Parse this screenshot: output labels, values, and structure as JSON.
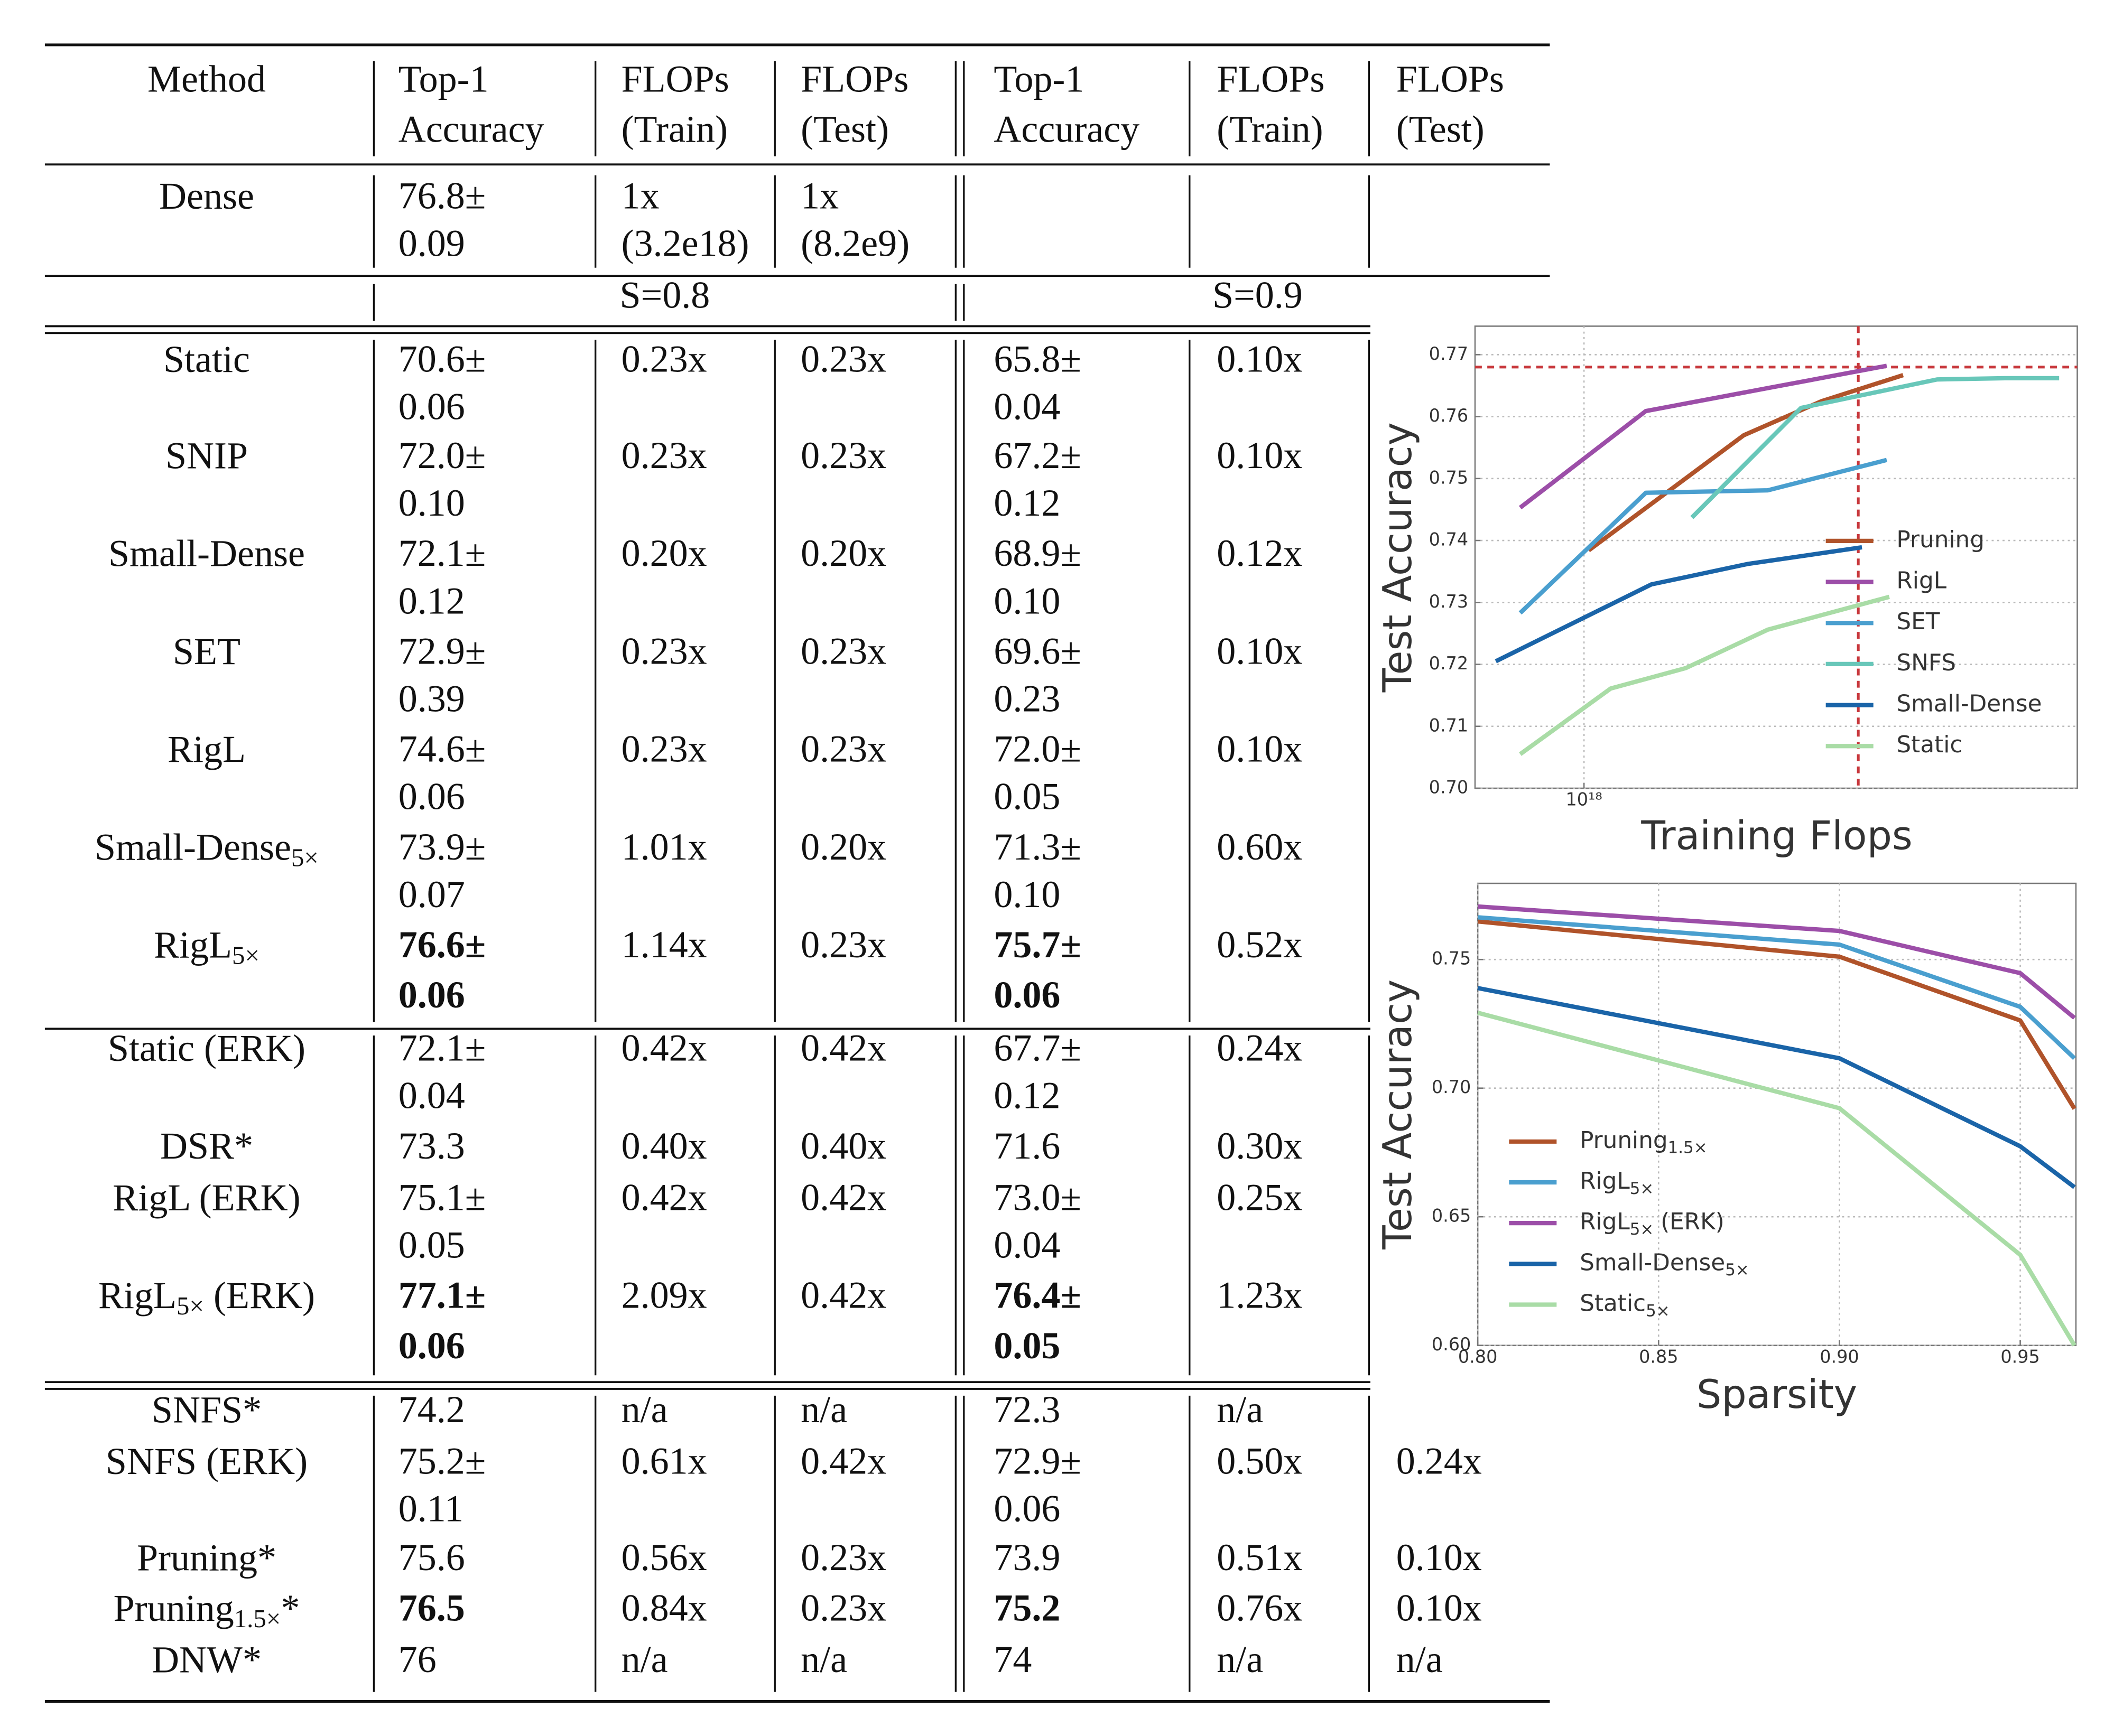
{
  "table": {
    "header": [
      [
        "Method"
      ],
      [
        "Top-1",
        "Accuracy"
      ],
      [
        "FLOPs",
        "(Train)"
      ],
      [
        "FLOPs",
        "(Test)"
      ],
      [
        "Top-1",
        "Accuracy"
      ],
      [
        "FLOPs",
        "(Train)"
      ],
      [
        "FLOPs",
        "(Test)"
      ]
    ],
    "dense": {
      "method": [
        "Dense"
      ],
      "cells": [
        [
          "76.8±",
          "0.09"
        ],
        [
          "1x",
          "(3.2e18)"
        ],
        [
          "1x",
          "(8.2e9)"
        ]
      ]
    },
    "sparsity": [
      "S=0.8",
      "S=0.9"
    ],
    "sections": [
      {
        "rows": [
          {
            "method": [
              "Static"
            ],
            "cells": [
              [
                "70.6±",
                "0.06"
              ],
              [
                "0.23x"
              ],
              [
                "0.23x"
              ],
              [
                "65.8±",
                "0.04"
              ],
              [
                "0.10x"
              ],
              null
            ]
          },
          {
            "method": [
              "SNIP"
            ],
            "cells": [
              [
                "72.0±",
                "0.10"
              ],
              [
                "0.23x"
              ],
              [
                "0.23x"
              ],
              [
                "67.2±",
                "0.12"
              ],
              [
                "0.10x"
              ],
              null
            ]
          },
          {
            "method": [
              "Small-Dense"
            ],
            "cells": [
              [
                "72.1±",
                "0.12"
              ],
              [
                "0.20x"
              ],
              [
                "0.20x"
              ],
              [
                "68.9±",
                "0.10"
              ],
              [
                "0.12x"
              ],
              null
            ]
          },
          {
            "method": [
              "SET"
            ],
            "cells": [
              [
                "72.9±",
                "0.39"
              ],
              [
                "0.23x"
              ],
              [
                "0.23x"
              ],
              [
                "69.6±",
                "0.23"
              ],
              [
                "0.10x"
              ],
              null
            ]
          },
          {
            "method": [
              "RigL"
            ],
            "cells": [
              [
                "74.6±",
                "0.06"
              ],
              [
                "0.23x"
              ],
              [
                "0.23x"
              ],
              [
                "72.0±",
                "0.05"
              ],
              [
                "0.10x"
              ],
              null
            ]
          },
          {
            "method": [
              "Small-Dense",
              "5×"
            ],
            "cells": [
              [
                "73.9±",
                "0.07"
              ],
              [
                "1.01x"
              ],
              [
                "0.20x"
              ],
              [
                "71.3±",
                "0.10"
              ],
              [
                "0.60x"
              ],
              null
            ]
          },
          {
            "method": [
              "RigL",
              "5×"
            ],
            "bold_accuracy": true,
            "cells": [
              [
                "76.6±",
                "0.06"
              ],
              [
                "1.14x"
              ],
              [
                "0.23x"
              ],
              [
                "75.7±",
                "0.06"
              ],
              [
                "0.52x"
              ],
              null
            ]
          }
        ]
      },
      {
        "rows": [
          {
            "method": [
              "Static (ERK)"
            ],
            "cells": [
              [
                "72.1±",
                "0.04"
              ],
              [
                "0.42x"
              ],
              [
                "0.42x"
              ],
              [
                "67.7±",
                "0.12"
              ],
              [
                "0.24x"
              ],
              null
            ]
          },
          {
            "method": [
              "DSR*"
            ],
            "cells": [
              [
                "73.3"
              ],
              [
                "0.40x"
              ],
              [
                "0.40x"
              ],
              [
                "71.6"
              ],
              [
                "0.30x"
              ],
              null
            ]
          },
          {
            "method": [
              "RigL (ERK)"
            ],
            "cells": [
              [
                "75.1±",
                "0.05"
              ],
              [
                "0.42x"
              ],
              [
                "0.42x"
              ],
              [
                "73.0±",
                "0.04"
              ],
              [
                "0.25x"
              ],
              null
            ]
          },
          {
            "method": [
              "RigL",
              "5×",
              "(ERK)"
            ],
            "bold_accuracy": true,
            "cells": [
              [
                "77.1±",
                "0.06"
              ],
              [
                "2.09x"
              ],
              [
                "0.42x"
              ],
              [
                "76.4±",
                "0.05"
              ],
              [
                "1.23x"
              ],
              null
            ]
          }
        ]
      },
      {
        "rows": [
          {
            "method": [
              "SNFS*"
            ],
            "cells": [
              [
                "74.2"
              ],
              [
                "n/a"
              ],
              [
                "n/a"
              ],
              [
                "72.3"
              ],
              [
                "n/a"
              ],
              null
            ]
          },
          {
            "method": [
              "SNFS (ERK)"
            ],
            "cells": [
              [
                "75.2±",
                "0.11"
              ],
              [
                "0.61x"
              ],
              [
                "0.42x"
              ],
              [
                "72.9±",
                "0.06"
              ],
              [
                "0.50x"
              ],
              [
                "0.24x"
              ]
            ]
          },
          {
            "method": [
              "Pruning*"
            ],
            "cells": [
              [
                "75.6"
              ],
              [
                "0.56x"
              ],
              [
                "0.23x"
              ],
              [
                "73.9"
              ],
              [
                "0.51x"
              ],
              [
                "0.10x"
              ]
            ]
          },
          {
            "method": [
              "Pruning",
              "1.5×",
              "*"
            ],
            "bold_accuracy": true,
            "cells": [
              [
                "76.5"
              ],
              [
                "0.84x"
              ],
              [
                "0.23x"
              ],
              [
                "75.2"
              ],
              [
                "0.76x"
              ],
              [
                "0.10x"
              ]
            ]
          },
          {
            "method": [
              "DNW*"
            ],
            "cells": [
              [
                "76"
              ],
              [
                "n/a"
              ],
              [
                "n/a"
              ],
              [
                "74"
              ],
              [
                "n/a"
              ],
              [
                "n/a"
              ]
            ]
          }
        ]
      }
    ]
  },
  "chart_data": [
    {
      "type": "line",
      "x_label": "Training Flops",
      "y_label": "Test Accuracy",
      "xscale": "log",
      "grid": true,
      "xlim": [
        6.3e+17,
        8.1e+18
      ],
      "xticks": [
        {
          "value": 1e+18,
          "label": "10¹⁸"
        }
      ],
      "ylim": [
        0.7,
        0.7746
      ],
      "yticks": [
        {
          "value": 0.7,
          "label": "0.70"
        },
        0.71,
        0.72,
        0.73,
        0.74,
        0.75,
        0.76,
        0.77
      ],
      "reference_lines": {
        "x": 3.2e+18,
        "y": 0.768,
        "color": "#c8383c"
      },
      "series": [
        {
          "name": "Pruning",
          "color": "#b0532a",
          "x": [
            1.02e+18,
            1.97e+18,
            2.74e+18,
            3.87e+18
          ],
          "values": [
            0.7384,
            0.757,
            0.7625,
            0.7667
          ]
        },
        {
          "name": "RigL",
          "color": "#9c4ea8",
          "x": [
            7.63e+17,
            1.3e+18,
            2.21e+18,
            3.61e+18
          ],
          "values": [
            0.7453,
            0.7609,
            0.7647,
            0.7682
          ]
        },
        {
          "name": "SET",
          "color": "#4a9fcf",
          "x": [
            7.63e+17,
            1.3e+18,
            2.18e+18,
            3.61e+18
          ],
          "values": [
            0.7283,
            0.7477,
            0.7481,
            0.753
          ]
        },
        {
          "name": "SNFS",
          "color": "#68c7b9",
          "x": [
            1.58e+18,
            2.51e+18,
            4.47e+18,
            5.96e+18,
            7.5e+18
          ],
          "values": [
            0.7437,
            0.7614,
            0.766,
            0.7662,
            0.7662
          ]
        },
        {
          "name": "Small-Dense",
          "color": "#1a64a8",
          "x": [
            6.88e+17,
            1.33e+18,
            2e+18,
            3.25e+18
          ],
          "values": [
            0.7205,
            0.7329,
            0.7362,
            0.7389
          ]
        },
        {
          "name": "Static",
          "color": "#a9dca6",
          "x": [
            7.63e+17,
            1.12e+18,
            1.54e+18,
            2.18e+18,
            3.65e+18
          ],
          "values": [
            0.7055,
            0.7161,
            0.7194,
            0.7256,
            0.7309
          ]
        }
      ]
    },
    {
      "type": "line",
      "x_label": "Sparsity",
      "y_label": "Test Accuracy",
      "xscale": "linear",
      "grid": true,
      "xlim": [
        0.8,
        0.9654
      ],
      "xticks": [
        {
          "value": 0.8,
          "label": "0.80"
        },
        0.85,
        {
          "value": 0.9,
          "label": "0.90"
        },
        0.95
      ],
      "ylim": [
        0.6,
        0.7796
      ],
      "yticks": [
        {
          "value": 0.6,
          "label": "0.60"
        },
        0.65,
        {
          "value": 0.7,
          "label": "0.70"
        },
        0.75
      ],
      "x": [
        0.8,
        0.9,
        0.95,
        0.965
      ],
      "series": [
        {
          "name": "Pruning",
          "name_sub": "1.5×",
          "color": "#b0532a",
          "values": [
            0.7648,
            0.7511,
            0.7263,
            0.692
          ]
        },
        {
          "name": "RigL",
          "name_sub": "5×",
          "color": "#4a9fcf",
          "values": [
            0.7664,
            0.7558,
            0.7316,
            0.7116
          ]
        },
        {
          "name": "RigL",
          "name_sub": "5×",
          "name_suffix": "(ERK)",
          "color": "#9c4ea8",
          "values": [
            0.7706,
            0.7611,
            0.7447,
            0.7273
          ]
        },
        {
          "name": "Small-Dense",
          "name_sub": "5×",
          "color": "#1a64a8",
          "values": [
            0.7389,
            0.7116,
            0.6774,
            0.6615
          ]
        },
        {
          "name": "Static",
          "name_sub": "5×",
          "color": "#a9dca6",
          "values": [
            0.7293,
            0.6922,
            0.6352,
            0.6
          ]
        }
      ]
    }
  ]
}
